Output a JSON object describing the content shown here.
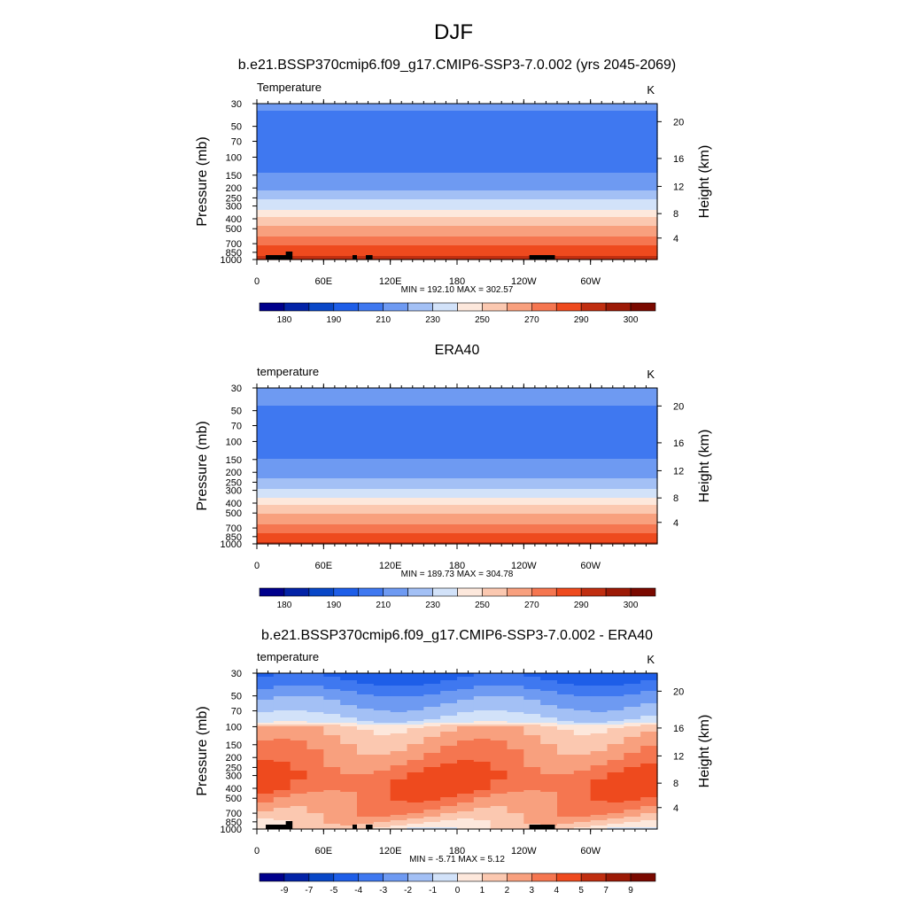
{
  "figure": {
    "season": "DJF"
  },
  "chart_data": [
    {
      "type": "heatmap",
      "title": "b.e21.BSSP370cmip6.f09_g17.CMIP6-SSP3-7.0.002 (yrs 2045-2069)",
      "variable": "Temperature",
      "units": "K",
      "xlabel": "",
      "ylabel": "Pressure (mb)",
      "ylabel_right": "Height (km)",
      "x_ticks": [
        "0",
        "60E",
        "120E",
        "180",
        "120W",
        "60W"
      ],
      "y_ticks": [
        "30",
        "50",
        "70",
        "100",
        "150",
        "200",
        "250",
        "300",
        "400",
        "500",
        "700",
        "850",
        "1000"
      ],
      "y_ticks_right": [
        "20",
        "16",
        "12",
        "8",
        "4"
      ],
      "y_scale": "log",
      "ylim": [
        1000,
        30
      ],
      "xlim": [
        0,
        360
      ],
      "stats": "MIN = 192.10  MAX = 302.57",
      "levels": [
        180,
        185,
        190,
        200,
        210,
        220,
        230,
        240,
        250,
        260,
        270,
        280,
        290,
        295,
        300
      ],
      "colorbar_labels": [
        "180",
        "190",
        "210",
        "230",
        "250",
        "270",
        "290",
        "300"
      ],
      "profile": {
        "p": [
          30,
          40,
          50,
          70,
          100,
          130,
          150,
          200,
          250,
          300,
          400,
          500,
          700,
          850,
          1000
        ],
        "values": [
          212,
          208,
          204,
          201,
          202,
          207,
          212,
          218,
          228,
          236,
          252,
          263,
          278,
          286,
          296
        ]
      },
      "terrain": true
    },
    {
      "type": "heatmap",
      "title": "ERA40",
      "variable": "temperature",
      "units": "K",
      "xlabel": "",
      "ylabel": "Pressure (mb)",
      "ylabel_right": "Height (km)",
      "x_ticks": [
        "0",
        "60E",
        "120E",
        "180",
        "120W",
        "60W"
      ],
      "y_ticks": [
        "30",
        "50",
        "70",
        "100",
        "150",
        "200",
        "250",
        "300",
        "400",
        "500",
        "700",
        "850",
        "1000"
      ],
      "y_ticks_right": [
        "20",
        "16",
        "12",
        "8",
        "4"
      ],
      "y_scale": "log",
      "ylim": [
        1000,
        30
      ],
      "xlim": [
        0,
        360
      ],
      "stats": "MIN = 189.73  MAX = 304.78",
      "levels": [
        180,
        185,
        190,
        200,
        210,
        220,
        230,
        240,
        250,
        260,
        270,
        280,
        290,
        295,
        300
      ],
      "colorbar_labels": [
        "180",
        "190",
        "210",
        "230",
        "250",
        "270",
        "290",
        "300"
      ],
      "profile": {
        "p": [
          30,
          40,
          50,
          70,
          100,
          130,
          150,
          200,
          250,
          300,
          400,
          500,
          700,
          850,
          1000
        ],
        "values": [
          215,
          212,
          207,
          203,
          202,
          206,
          211,
          216,
          224,
          232,
          248,
          259,
          274,
          283,
          294
        ]
      },
      "terrain": false
    },
    {
      "type": "heatmap",
      "title": "b.e21.BSSP370cmip6.f09_g17.CMIP6-SSP3-7.0.002 - ERA40",
      "variable": "temperature",
      "units": "K",
      "xlabel": "",
      "ylabel": "Pressure (mb)",
      "ylabel_right": "Height (km)",
      "x_ticks": [
        "0",
        "60E",
        "120E",
        "180",
        "120W",
        "60W"
      ],
      "y_ticks": [
        "30",
        "50",
        "70",
        "100",
        "150",
        "200",
        "250",
        "300",
        "400",
        "500",
        "700",
        "850",
        "1000"
      ],
      "y_ticks_right": [
        "20",
        "16",
        "12",
        "8",
        "4"
      ],
      "y_scale": "log",
      "ylim": [
        1000,
        30
      ],
      "xlim": [
        0,
        360
      ],
      "stats": "MIN = -5.71  MAX =   5.12",
      "levels": [
        -9,
        -7,
        -5,
        -4,
        -3,
        -2,
        -1,
        0,
        1,
        2,
        3,
        4,
        5,
        7,
        9
      ],
      "colorbar_labels": [
        "-9",
        "-7",
        "-5",
        "-4",
        "-3",
        "-2",
        "-1",
        "0",
        "1",
        "2",
        "3",
        "4",
        "5",
        "7",
        "9"
      ],
      "profile": {
        "p": [
          30,
          40,
          50,
          70,
          90,
          100,
          150,
          200,
          250,
          300,
          400,
          500,
          700,
          850,
          1000
        ],
        "values": [
          -4.5,
          -3.5,
          -2.5,
          -1.5,
          -0.5,
          1.5,
          2.5,
          3.0,
          3.5,
          4.0,
          4.0,
          3.3,
          2.5,
          1.5,
          0.5
        ]
      },
      "terrain": true
    }
  ],
  "colors": {
    "palette": [
      "#00008c",
      "#0323a7",
      "#0947c7",
      "#1e5ee8",
      "#3f78f0",
      "#6e9af2",
      "#a3c0f5",
      "#d2e2f9",
      "#fde8dc",
      "#fbc8b0",
      "#f8a07e",
      "#f57650",
      "#ee4a1e",
      "#c02e10",
      "#9c1a06",
      "#7a0900"
    ],
    "terrain": "#000000"
  }
}
